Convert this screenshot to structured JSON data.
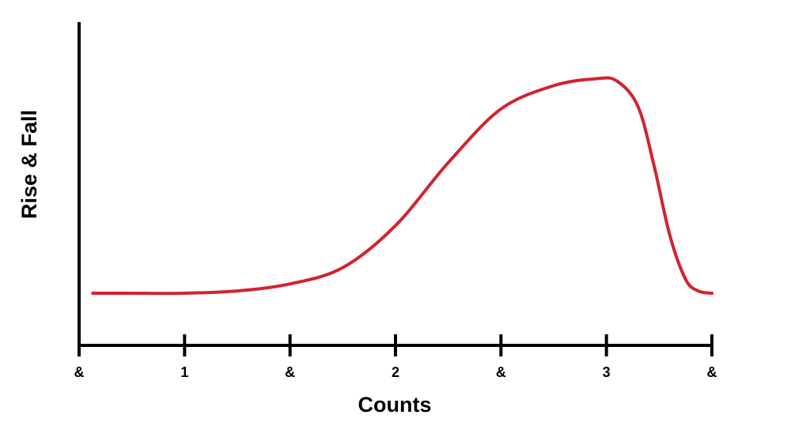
{
  "chart_data": {
    "type": "line",
    "title": "",
    "xlabel": "Counts",
    "ylabel": "Rise & Fall",
    "x_ticks": [
      "&",
      "1",
      "&",
      "2",
      "&",
      "3",
      "&"
    ],
    "xlim": [
      0,
      6
    ],
    "ylim": [
      0,
      1
    ],
    "grid": false,
    "legend": "none",
    "series": [
      {
        "color": "#d2232f",
        "x": [
          0.13,
          0.5,
          1.0,
          1.5,
          2.0,
          2.5,
          3.0,
          3.5,
          4.0,
          4.5,
          4.9,
          5.1,
          5.3,
          5.45,
          5.6,
          5.75,
          5.87,
          6.0
        ],
        "y": [
          0.0,
          0.0,
          0.0,
          0.01,
          0.04,
          0.11,
          0.29,
          0.56,
          0.79,
          0.89,
          0.92,
          0.91,
          0.8,
          0.55,
          0.25,
          0.06,
          0.01,
          0.0
        ]
      }
    ]
  }
}
